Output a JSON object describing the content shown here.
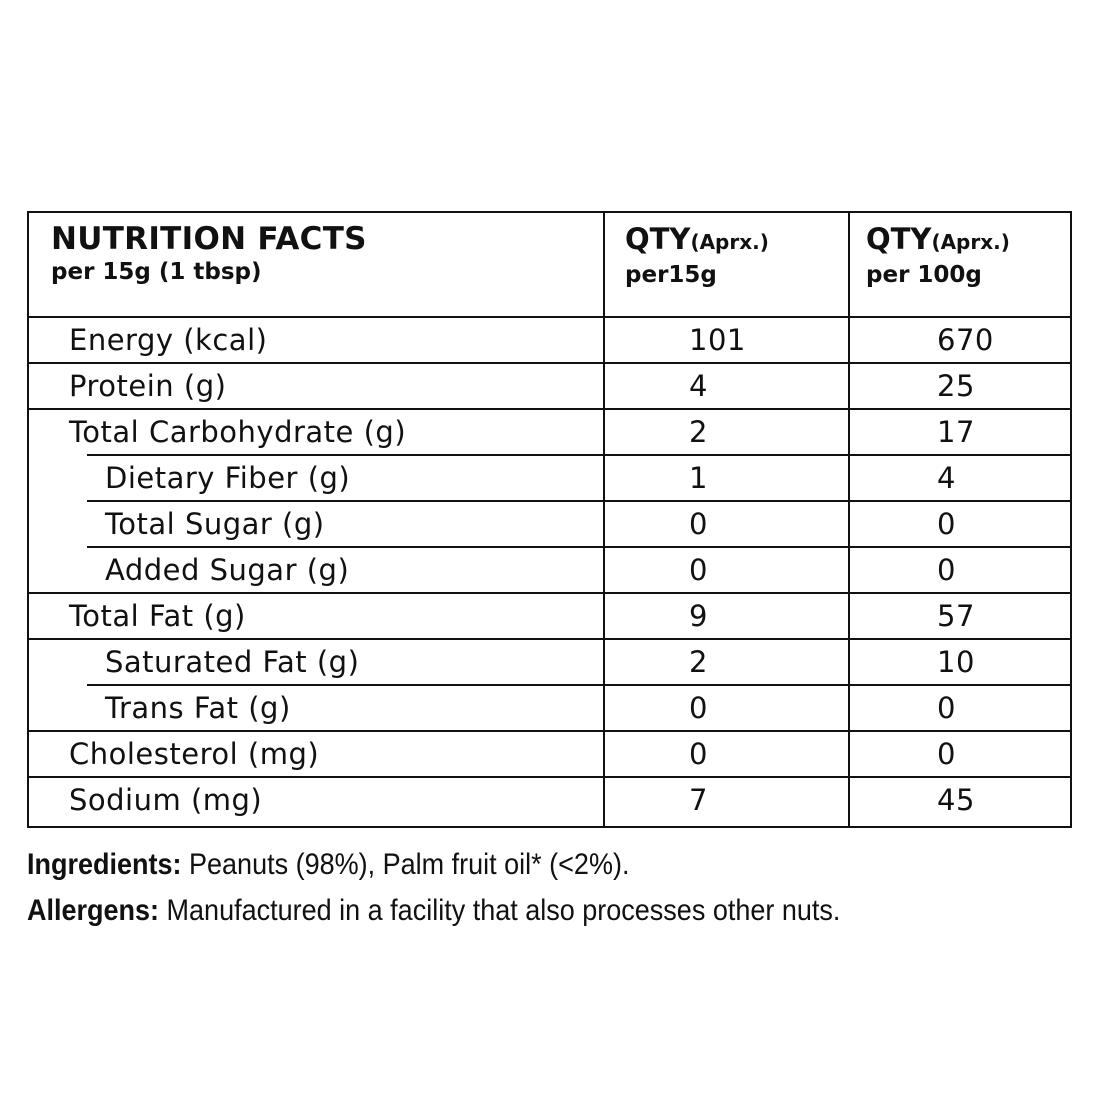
{
  "table": {
    "header": {
      "title": "NUTRITION FACTS",
      "subtitle": "per 15g (1 tbsp)",
      "col1": {
        "qty": "QTY",
        "approx": "(Aprx.)",
        "basis": "per15g"
      },
      "col2": {
        "qty": "QTY",
        "approx": "(Aprx.)",
        "basis": "per 100g"
      }
    },
    "rows": [
      {
        "name": "Energy (kcal)",
        "per15g": "101",
        "per100g": "670"
      },
      {
        "name": "Protein (g)",
        "per15g": "4",
        "per100g": "25"
      },
      {
        "name": "Total Carbohydrate (g)",
        "per15g": "2",
        "per100g": "17"
      },
      {
        "name": "Dietary Fiber (g)",
        "per15g": "1",
        "per100g": "4"
      },
      {
        "name": "Total Sugar (g)",
        "per15g": "0",
        "per100g": "0"
      },
      {
        "name": "Added Sugar (g)",
        "per15g": "0",
        "per100g": "0"
      },
      {
        "name": "Total Fat (g)",
        "per15g": "9",
        "per100g": "57"
      },
      {
        "name": "Saturated Fat (g)",
        "per15g": "2",
        "per100g": "10"
      },
      {
        "name": "Trans Fat (g)",
        "per15g": "0",
        "per100g": "0"
      },
      {
        "name": "Cholesterol (mg)",
        "per15g": "0",
        "per100g": "0"
      },
      {
        "name": "Sodium (mg)",
        "per15g": "7",
        "per100g": "45"
      }
    ]
  },
  "ingredients": {
    "label": "Ingredients:",
    "text": " Peanuts (98%), Palm fruit oil* (<2%)."
  },
  "allergens": {
    "label": "Allergens:",
    "text": " Manufactured in a facility that also processes other nuts."
  }
}
